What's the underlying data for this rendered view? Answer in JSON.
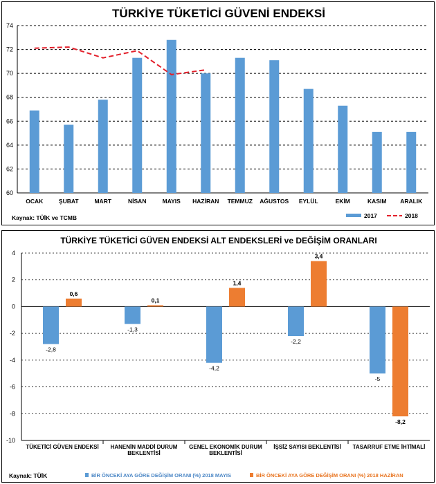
{
  "chart_data": [
    {
      "type": "bar",
      "title": "TÜRKİYE TÜKETİCİ GÜVENİ ENDEKSİ",
      "categories": [
        "OCAK",
        "ŞUBAT",
        "MART",
        "NİSAN",
        "MAYIS",
        "HAZİRAN",
        "TEMMUZ",
        "AĞUSTOS",
        "EYLÜL",
        "EKİM",
        "KASIM",
        "ARALIK"
      ],
      "series": [
        {
          "name": "2017",
          "kind": "bar",
          "color": "#5b9bd5",
          "values": [
            66.9,
            65.7,
            67.8,
            71.3,
            72.8,
            70.0,
            71.3,
            71.1,
            68.7,
            67.3,
            65.1,
            65.1
          ]
        },
        {
          "name": "2018",
          "kind": "line-dashed",
          "color": "#e3202b",
          "values": [
            72.1,
            72.2,
            71.3,
            71.9,
            69.9,
            70.3,
            null,
            null,
            null,
            null,
            null,
            null
          ]
        }
      ],
      "ylim": [
        60,
        74
      ],
      "yticks": [
        60,
        62,
        64,
        66,
        68,
        70,
        72,
        74
      ],
      "grid": true,
      "legend": "bottom-right",
      "source": "Kaynak: TÜİK ve TCMB"
    },
    {
      "type": "bar",
      "title": "TÜRKİYE TÜKETİCİ GÜVEN ENDEKSİ ALT ENDEKSLERİ ve DEĞİŞİM ORANLARI",
      "categories": [
        [
          "TÜKETİCİ GÜVEN ENDEKSİ"
        ],
        [
          "HANENİN MADDİ DURUM",
          "BEKLENTİSİ"
        ],
        [
          "GENEL EKONOMİK DURUM",
          "BEKLENTİSİ"
        ],
        [
          "İŞSİZ SAYISI BEKLENTİSİ"
        ],
        [
          "TASARRUF ETME İHTİMALİ"
        ]
      ],
      "series": [
        {
          "name": "BİR ÖNCEKİ AYA GÖRE DEĞİŞİM ORANI (%) 2018 MAYIS",
          "color": "#5b9bd5",
          "values": [
            -2.8,
            -1.3,
            -4.2,
            -2.2,
            -5
          ],
          "labels": [
            "-2,8",
            "-1,3",
            "-4,2",
            "-2,2",
            "-5"
          ]
        },
        {
          "name": "BİR ÖNCEKİ AYA GÖRE DEĞİŞİM ORANI (%) 2018 HAZİRAN",
          "color": "#ed7d31",
          "values": [
            0.6,
            0.1,
            1.4,
            3.4,
            -8.2
          ],
          "labels": [
            "0,6",
            "0,1",
            "1,4",
            "3,4",
            "-8,2"
          ]
        }
      ],
      "ylim": [
        -10,
        4
      ],
      "yticks": [
        4,
        2,
        0,
        -2,
        -4,
        -6,
        -8,
        -10
      ],
      "grid": true,
      "legend": "bottom",
      "source": "Kaynak: TÜİK"
    }
  ]
}
